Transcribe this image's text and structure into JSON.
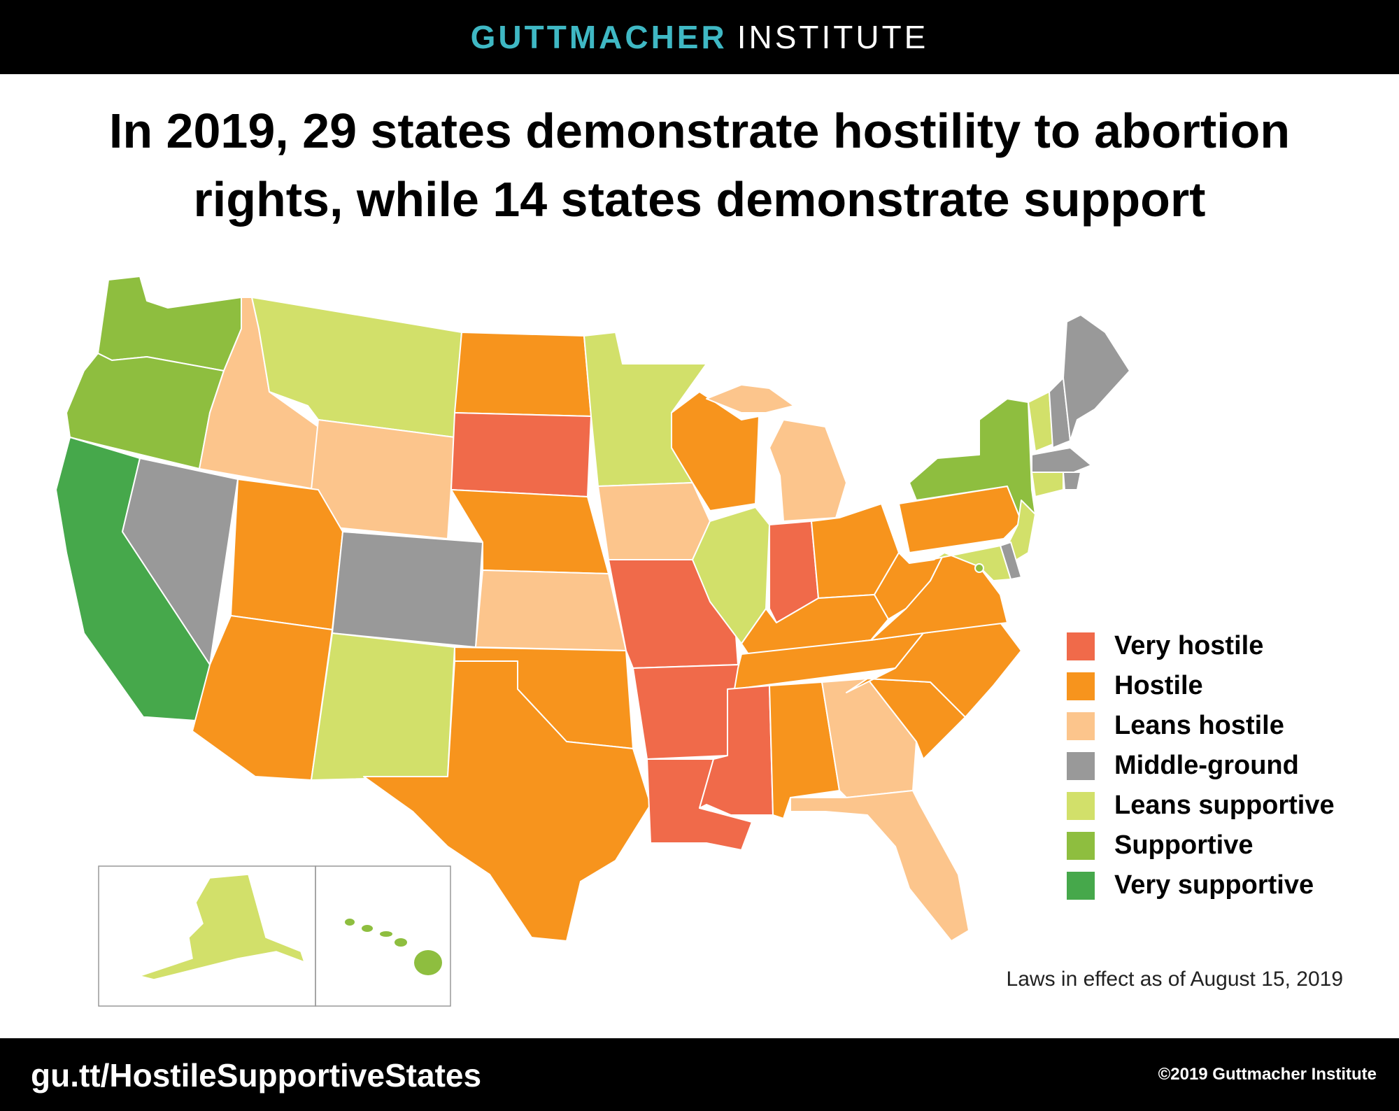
{
  "header": {
    "brand_primary": "GUTTMACHER",
    "brand_secondary": "INSTITUTE",
    "brand_color": "#3fb8c4"
  },
  "title": {
    "line1": "In 2019, 29 states demonstrate hostility to abortion",
    "line2": "rights, while 14 states demonstrate support"
  },
  "legend": [
    {
      "category": "very-hostile",
      "label": "Very hostile",
      "color": "#f06a4a"
    },
    {
      "category": "hostile",
      "label": "Hostile",
      "color": "#f7941d"
    },
    {
      "category": "leans-hostile",
      "label": "Leans hostile",
      "color": "#fcc58c"
    },
    {
      "category": "middle-ground",
      "label": "Middle-ground",
      "color": "#999999"
    },
    {
      "category": "leans-supportive",
      "label": "Leans supportive",
      "color": "#d2e06a"
    },
    {
      "category": "supportive",
      "label": "Supportive",
      "color": "#8ebe3f"
    },
    {
      "category": "very-supportive",
      "label": "Very supportive",
      "color": "#46a84b"
    }
  ],
  "states": {
    "WA": "supportive",
    "OR": "supportive",
    "CA": "very-supportive",
    "ID": "leans-hostile",
    "NV": "middle-ground",
    "MT": "leans-supportive",
    "WY": "leans-hostile",
    "UT": "hostile",
    "AZ": "hostile",
    "CO": "middle-ground",
    "NM": "leans-supportive",
    "ND": "hostile",
    "SD": "very-hostile",
    "NE": "hostile",
    "KS": "leans-hostile",
    "OK": "hostile",
    "TX": "hostile",
    "MN": "leans-supportive",
    "IA": "leans-hostile",
    "MO": "very-hostile",
    "AR": "very-hostile",
    "LA": "very-hostile",
    "WI": "hostile",
    "IL": "leans-supportive",
    "MI": "leans-hostile",
    "IN": "very-hostile",
    "OH": "hostile",
    "KY": "hostile",
    "TN": "hostile",
    "MS": "very-hostile",
    "AL": "hostile",
    "GA": "leans-hostile",
    "FL": "leans-hostile",
    "SC": "hostile",
    "NC": "hostile",
    "VA": "hostile",
    "WV": "hostile",
    "PA": "hostile",
    "NY": "supportive",
    "VT": "leans-supportive",
    "NH": "middle-ground",
    "ME": "middle-ground",
    "MA": "middle-ground",
    "RI": "middle-ground",
    "CT": "leans-supportive",
    "NJ": "leans-supportive",
    "DE": "middle-ground",
    "MD": "leans-supportive",
    "DC": "supportive",
    "AK": "leans-supportive",
    "HI": "supportive"
  },
  "note": "Laws in effect as of August 15, 2019",
  "footer": {
    "url": "gu.tt/HostileSupportiveStates",
    "copyright": "©2019 Guttmacher Institute"
  }
}
